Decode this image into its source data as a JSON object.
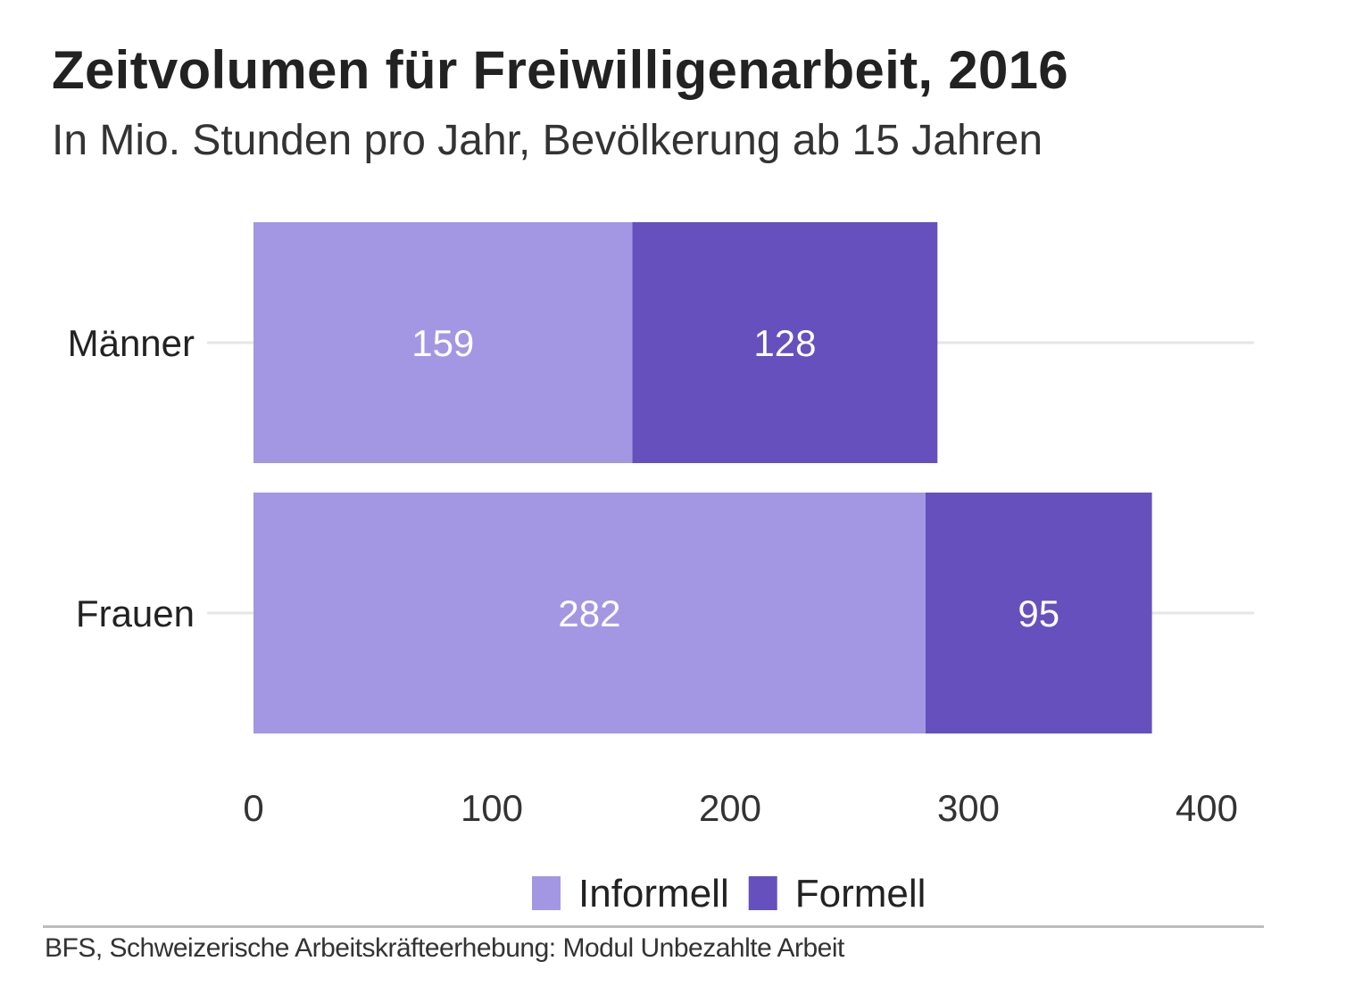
{
  "chart_data": {
    "type": "bar",
    "orientation": "horizontal",
    "stacked": true,
    "title": "Zeitvolumen für Freiwilligenarbeit, 2016",
    "subtitle": "In Mio. Stunden pro Jahr, Bevölkerung ab 15 Jahren",
    "categories": [
      "Männer",
      "Frauen"
    ],
    "series": [
      {
        "name": "Informell",
        "values": [
          159,
          282
        ],
        "color": "#a397e3",
        "label_color": "#ffffff"
      },
      {
        "name": "Formell",
        "values": [
          128,
          95
        ],
        "color": "#6550be",
        "label_color": "#ffffff"
      }
    ],
    "xlabel": "",
    "ylabel": "",
    "xlim": [
      0,
      400
    ],
    "xticks": [
      0,
      100,
      200,
      300,
      400
    ],
    "xtick_labels": [
      "0",
      "100",
      "200",
      "300",
      "400"
    ],
    "grid": true,
    "legend_position": "bottom-center",
    "source": "BFS, Schweizerische Arbeitskräfteerhebung: Modul Unbezahlte Arbeit"
  }
}
